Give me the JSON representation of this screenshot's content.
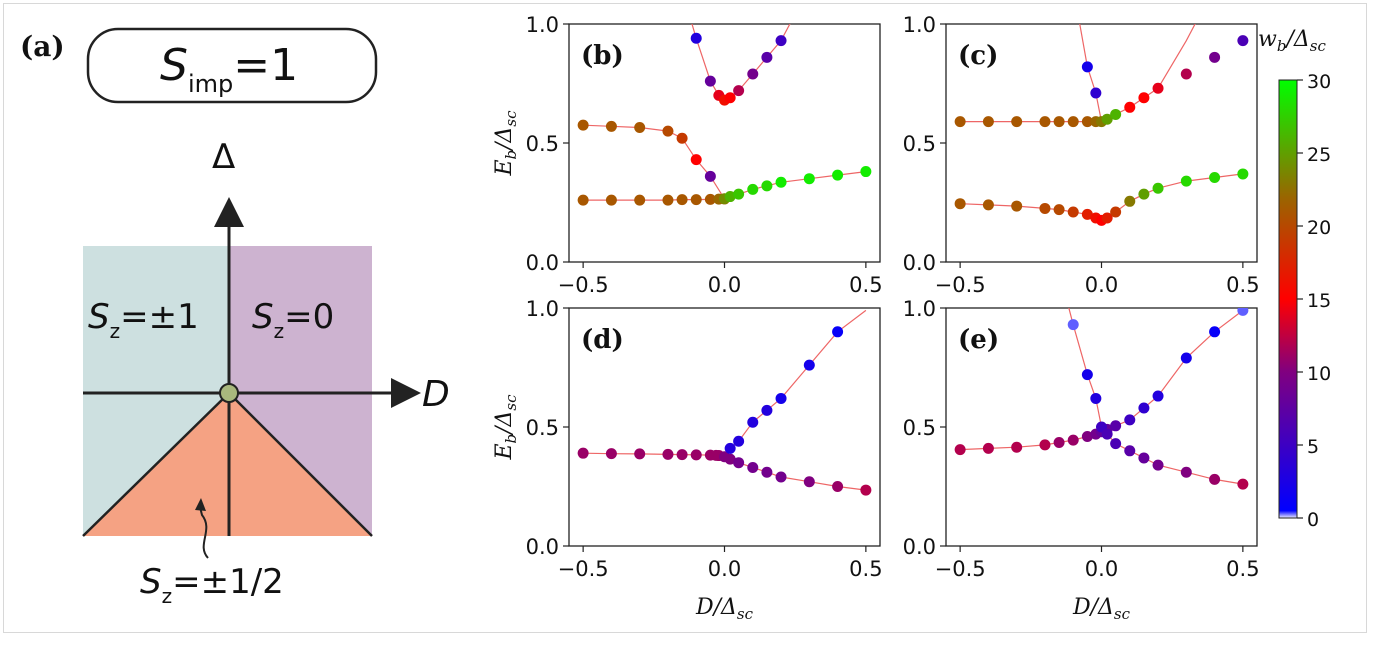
{
  "panel_a": {
    "label": "(a)",
    "title_main": "S",
    "title_sub": "imp",
    "title_rest": "=1",
    "axis_y_label": "Δ",
    "axis_x_label": "D",
    "region_left": {
      "main": "S",
      "sub": "z",
      "rest": "=±1"
    },
    "region_right": {
      "main": "S",
      "sub": "z",
      "rest": "=0"
    },
    "region_bottom": {
      "main": "S",
      "sub": "z",
      "rest": "=±1/2"
    },
    "colors": {
      "left": "#cde0e0",
      "right": "#cdb3d0",
      "bottom": "#f5a283",
      "dot": "#a9b87d"
    }
  },
  "colorbar": {
    "label": "w_b/Δ_sc",
    "ticks": [
      0,
      5,
      10,
      15,
      20,
      25,
      30
    ],
    "range": [
      0,
      30
    ],
    "stops": [
      {
        "v": 0,
        "c": "#eeeeff"
      },
      {
        "v": 0.5,
        "c": "#0000ff"
      },
      {
        "v": 10,
        "c": "#800080"
      },
      {
        "v": 15,
        "c": "#ff0000"
      },
      {
        "v": 22,
        "c": "#996600"
      },
      {
        "v": 30,
        "c": "#00ff00"
      }
    ]
  },
  "chart_data": [
    {
      "panel": "(b)",
      "type": "scatter",
      "xlabel": "",
      "ylabel": "E_b/Δ_sc",
      "xlim": [
        -0.55,
        0.55
      ],
      "ylim": [
        0.0,
        1.0
      ],
      "xticks": [
        "−0.5",
        "0.0",
        "0.5"
      ],
      "yticks": [
        "0.0",
        "0.5",
        "1.0"
      ],
      "series": [
        {
          "x": [
            -0.5,
            -0.4,
            -0.3,
            -0.2,
            -0.15,
            -0.1,
            -0.05,
            0.0
          ],
          "y": [
            0.575,
            0.57,
            0.565,
            0.55,
            0.52,
            0.43,
            0.36,
            0.265
          ],
          "w": [
            21,
            21,
            21,
            20,
            19,
            15,
            8,
            20
          ]
        },
        {
          "x": [
            -0.5,
            -0.4,
            -0.3,
            -0.2,
            -0.15,
            -0.1,
            -0.05,
            -0.02,
            0.0,
            0.02,
            0.05,
            0.1,
            0.15,
            0.2,
            0.3,
            0.4,
            0.5
          ],
          "y": [
            0.26,
            0.26,
            0.26,
            0.26,
            0.262,
            0.262,
            0.263,
            0.264,
            0.266,
            0.275,
            0.285,
            0.305,
            0.32,
            0.335,
            0.35,
            0.365,
            0.38
          ],
          "w": [
            21,
            21,
            21,
            21,
            21,
            21,
            21,
            22,
            24,
            26,
            27,
            28,
            28,
            29,
            29,
            29,
            29
          ]
        },
        {
          "x": [
            -0.1,
            -0.05,
            -0.02,
            0.0,
            0.02,
            0.05,
            0.1,
            0.15,
            0.2
          ],
          "y": [
            0.94,
            0.76,
            0.7,
            0.68,
            0.69,
            0.72,
            0.79,
            0.86,
            0.93
          ],
          "w": [
            3,
            8,
            14,
            16,
            15,
            12,
            9,
            7,
            5
          ]
        }
      ],
      "lines": [
        {
          "x": [
            -0.5,
            -0.4,
            -0.3,
            -0.2,
            -0.15,
            -0.1,
            -0.05,
            0.0
          ],
          "y": [
            0.575,
            0.57,
            0.565,
            0.55,
            0.52,
            0.43,
            0.36,
            0.265
          ]
        },
        {
          "x": [
            -0.5,
            -0.4,
            -0.3,
            -0.2,
            -0.15,
            -0.1,
            -0.05,
            -0.02,
            0.0,
            0.02,
            0.05,
            0.1,
            0.15,
            0.2,
            0.3,
            0.4,
            0.5
          ],
          "y": [
            0.26,
            0.26,
            0.26,
            0.26,
            0.262,
            0.262,
            0.263,
            0.264,
            0.266,
            0.275,
            0.285,
            0.305,
            0.32,
            0.335,
            0.35,
            0.365,
            0.38
          ]
        },
        {
          "x": [
            -0.12,
            -0.1,
            -0.05,
            -0.02,
            0.0,
            0.02,
            0.05,
            0.1,
            0.15,
            0.2,
            0.24
          ],
          "y": [
            1.02,
            0.94,
            0.76,
            0.7,
            0.68,
            0.69,
            0.72,
            0.79,
            0.86,
            0.93,
            1.02
          ]
        }
      ]
    },
    {
      "panel": "(c)",
      "type": "scatter",
      "xlabel": "",
      "ylabel": "",
      "xlim": [
        -0.55,
        0.55
      ],
      "ylim": [
        0.0,
        1.0
      ],
      "xticks": [
        "−0.5",
        "0.0",
        "0.5"
      ],
      "yticks": [
        "0.0",
        "0.5",
        "1.0"
      ],
      "series": [
        {
          "x": [
            -0.5,
            -0.4,
            -0.3,
            -0.2,
            -0.15,
            -0.1,
            -0.05,
            -0.02,
            0.0,
            0.02,
            0.05,
            0.1,
            0.15,
            0.2,
            0.3,
            0.4,
            0.5
          ],
          "y": [
            0.59,
            0.59,
            0.59,
            0.59,
            0.59,
            0.59,
            0.59,
            0.59,
            0.59,
            0.6,
            0.62,
            0.65,
            0.69,
            0.73,
            0.79,
            0.86,
            0.93
          ],
          "w": [
            21,
            21,
            21,
            21,
            21,
            21,
            21,
            22,
            23,
            25,
            26,
            15,
            15,
            14,
            12,
            9,
            6
          ]
        },
        {
          "x": [
            -0.05,
            -0.02
          ],
          "y": [
            0.82,
            0.71
          ],
          "w": [
            2,
            4
          ]
        },
        {
          "x": [
            -0.5,
            -0.4,
            -0.3,
            -0.2,
            -0.15,
            -0.1,
            -0.05,
            -0.02,
            0.0,
            0.02,
            0.05,
            0.1,
            0.15,
            0.2,
            0.3,
            0.4,
            0.5
          ],
          "y": [
            0.245,
            0.24,
            0.235,
            0.225,
            0.22,
            0.21,
            0.2,
            0.185,
            0.175,
            0.185,
            0.21,
            0.255,
            0.285,
            0.31,
            0.34,
            0.355,
            0.37
          ],
          "w": [
            21,
            21,
            21,
            20,
            20,
            19,
            17,
            16,
            15,
            17,
            19,
            23,
            25,
            27,
            28,
            28,
            28
          ]
        }
      ],
      "lines": [
        {
          "x": [
            -0.5,
            -0.4,
            -0.3,
            -0.2,
            -0.15,
            -0.1,
            -0.05,
            -0.02,
            0.0,
            0.02,
            0.05,
            0.1,
            0.15,
            0.2,
            0.3,
            0.34
          ],
          "y": [
            0.59,
            0.59,
            0.59,
            0.59,
            0.59,
            0.59,
            0.59,
            0.59,
            0.59,
            0.6,
            0.62,
            0.65,
            0.69,
            0.73,
            0.93,
            1.02
          ]
        },
        {
          "x": [
            -0.08,
            -0.05,
            -0.02,
            0.0
          ],
          "y": [
            1.02,
            0.82,
            0.71,
            0.59
          ]
        },
        {
          "x": [
            -0.5,
            -0.4,
            -0.3,
            -0.2,
            -0.15,
            -0.1,
            -0.05,
            -0.02,
            0.0,
            0.02,
            0.05,
            0.1,
            0.15,
            0.2,
            0.3,
            0.4,
            0.5
          ],
          "y": [
            0.245,
            0.24,
            0.235,
            0.225,
            0.22,
            0.21,
            0.2,
            0.185,
            0.175,
            0.185,
            0.21,
            0.255,
            0.285,
            0.31,
            0.34,
            0.355,
            0.37
          ]
        }
      ]
    },
    {
      "panel": "(d)",
      "type": "scatter",
      "xlabel": "D/Δ_sc",
      "ylabel": "E_b/Δ_sc",
      "xlim": [
        -0.55,
        0.55
      ],
      "ylim": [
        0.0,
        1.0
      ],
      "xticks": [
        "−0.5",
        "0.0",
        "0.5"
      ],
      "yticks": [
        "0.0",
        "0.5",
        "1.0"
      ],
      "series": [
        {
          "x": [
            -0.5,
            -0.4,
            -0.3,
            -0.2,
            -0.15,
            -0.1,
            -0.05,
            -0.03,
            -0.02,
            0.0,
            0.02,
            0.05,
            0.1,
            0.15,
            0.2,
            0.3,
            0.4,
            0.5
          ],
          "y": [
            0.39,
            0.388,
            0.387,
            0.385,
            0.384,
            0.383,
            0.382,
            0.381,
            0.38,
            0.375,
            0.365,
            0.35,
            0.33,
            0.31,
            0.29,
            0.27,
            0.25,
            0.235
          ],
          "w": [
            11,
            11,
            11,
            11,
            11,
            11,
            11,
            11,
            11,
            10,
            10,
            9,
            9,
            9,
            9,
            10,
            11,
            12
          ]
        },
        {
          "x": [
            0.02,
            0.05,
            0.1,
            0.15,
            0.2,
            0.3,
            0.4
          ],
          "y": [
            0.41,
            0.44,
            0.52,
            0.57,
            0.62,
            0.76,
            0.9
          ],
          "w": [
            3,
            3,
            3,
            3,
            2,
            2,
            1
          ]
        }
      ],
      "lines": [
        {
          "x": [
            -0.5,
            -0.4,
            -0.3,
            -0.2,
            -0.15,
            -0.1,
            -0.05,
            -0.03,
            -0.02,
            0.0,
            0.02,
            0.05,
            0.1,
            0.15,
            0.2,
            0.3,
            0.4,
            0.5
          ],
          "y": [
            0.39,
            0.388,
            0.387,
            0.385,
            0.384,
            0.383,
            0.382,
            0.381,
            0.38,
            0.375,
            0.365,
            0.35,
            0.33,
            0.31,
            0.29,
            0.27,
            0.25,
            0.235
          ]
        },
        {
          "x": [
            0.0,
            0.02,
            0.05,
            0.1,
            0.15,
            0.2,
            0.3,
            0.4,
            0.5
          ],
          "y": [
            0.385,
            0.41,
            0.44,
            0.52,
            0.57,
            0.62,
            0.76,
            0.9,
            0.99
          ]
        }
      ]
    },
    {
      "panel": "(e)",
      "type": "scatter",
      "xlabel": "D/Δ_sc",
      "ylabel": "",
      "xlim": [
        -0.55,
        0.55
      ],
      "ylim": [
        0.0,
        1.0
      ],
      "xticks": [
        "−0.5",
        "0.0",
        "0.5"
      ],
      "yticks": [
        "0.0",
        "0.5",
        "1.0"
      ],
      "series": [
        {
          "x": [
            -0.5,
            -0.4,
            -0.3,
            -0.2,
            -0.15,
            -0.1,
            -0.05,
            -0.02,
            0.0,
            0.02,
            0.05,
            0.1,
            0.15,
            0.2,
            0.3,
            0.4,
            0.5
          ],
          "y": [
            0.405,
            0.41,
            0.415,
            0.425,
            0.435,
            0.445,
            0.46,
            0.47,
            0.48,
            0.49,
            0.505,
            0.53,
            0.58,
            0.63,
            0.79,
            0.9,
            0.99
          ],
          "w": [
            12,
            12,
            12,
            12,
            11,
            11,
            10,
            9,
            8,
            8,
            7,
            5,
            4,
            3,
            2,
            1,
            0.3
          ]
        },
        {
          "x": [
            -0.1,
            -0.05,
            -0.02,
            0.0,
            0.02,
            0.05,
            0.1,
            0.15,
            0.2,
            0.3,
            0.4,
            0.5
          ],
          "y": [
            0.93,
            0.72,
            0.62,
            0.5,
            0.47,
            0.43,
            0.4,
            0.37,
            0.34,
            0.31,
            0.28,
            0.26
          ],
          "w": [
            0.3,
            2,
            3,
            5,
            6,
            6,
            7,
            8,
            9,
            10,
            11,
            12
          ]
        }
      ],
      "lines": [
        {
          "x": [
            -0.5,
            -0.4,
            -0.3,
            -0.2,
            -0.15,
            -0.1,
            -0.05,
            -0.02,
            0.0,
            0.02,
            0.05,
            0.1,
            0.15,
            0.2,
            0.3,
            0.4,
            0.5
          ],
          "y": [
            0.405,
            0.41,
            0.415,
            0.425,
            0.435,
            0.445,
            0.46,
            0.47,
            0.48,
            0.49,
            0.505,
            0.53,
            0.58,
            0.63,
            0.79,
            0.9,
            0.99
          ]
        },
        {
          "x": [
            -0.12,
            -0.1,
            -0.05,
            -0.02,
            0.0,
            0.02,
            0.05,
            0.1,
            0.15,
            0.2,
            0.3,
            0.4,
            0.5
          ],
          "y": [
            1.02,
            0.93,
            0.72,
            0.62,
            0.5,
            0.47,
            0.43,
            0.4,
            0.37,
            0.34,
            0.31,
            0.28,
            0.26
          ]
        }
      ]
    }
  ]
}
